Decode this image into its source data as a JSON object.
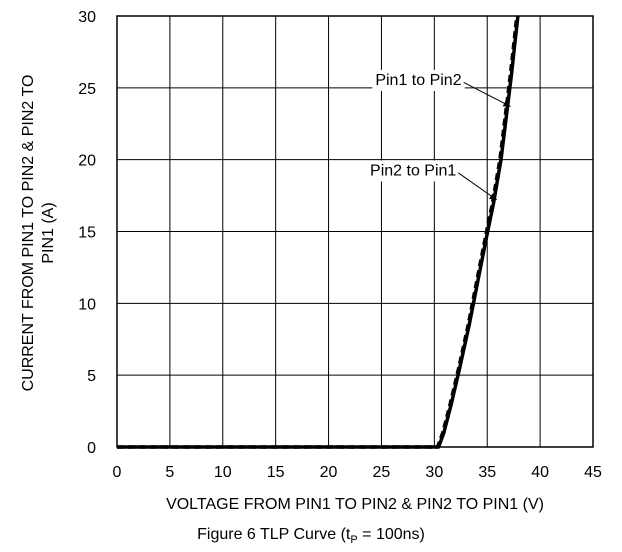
{
  "chart_data": {
    "type": "line",
    "title": "",
    "xlabel": "VOLTAGE FROM PIN1 TO PIN2 & PIN2 TO PIN1 (V)",
    "ylabel": [
      "CURRENT FROM PIN1 TO PIN2 & PIN2 TO",
      "PIN1 (A)"
    ],
    "xlim": [
      0,
      45
    ],
    "ylim": [
      0,
      30
    ],
    "xticks": [
      0,
      5,
      10,
      15,
      20,
      25,
      30,
      35,
      40,
      45
    ],
    "yticks": [
      0,
      5,
      10,
      15,
      20,
      25,
      30
    ],
    "grid": true,
    "series": [
      {
        "name": "Pin1 to Pin2",
        "style": "dashed",
        "x": [
          0,
          30.3,
          30.8,
          31.5,
          32.3,
          33.2,
          34.0,
          34.8,
          35.5,
          36.2,
          36.7,
          37.2,
          37.5,
          37.8
        ],
        "y": [
          0,
          0,
          1,
          3,
          5.5,
          8.5,
          11.5,
          14.5,
          17,
          20,
          23,
          26,
          28,
          30
        ]
      },
      {
        "name": "Pin2 to Pin1",
        "style": "solid",
        "x": [
          0,
          30.4,
          30.9,
          31.6,
          32.4,
          33.3,
          34.1,
          34.9,
          35.6,
          36.3,
          36.8,
          37.3,
          37.6,
          37.9
        ],
        "y": [
          0,
          0,
          1,
          3,
          5.5,
          8.5,
          11.5,
          14.5,
          17,
          20,
          23,
          26,
          28,
          30
        ]
      }
    ],
    "annotations": [
      {
        "text": "Pin1 to Pin2",
        "x": 28.5,
        "y": 25.2,
        "target_x": 37.2,
        "target_y": 23.7
      },
      {
        "text": "Pin2 to Pin1",
        "x": 28.0,
        "y": 18.9,
        "target_x": 35.9,
        "target_y": 17.2
      }
    ],
    "caption": {
      "prefix": "Figure 6  TLP Curve (t",
      "sub": "P",
      "suffix": " = 100ns)"
    }
  }
}
